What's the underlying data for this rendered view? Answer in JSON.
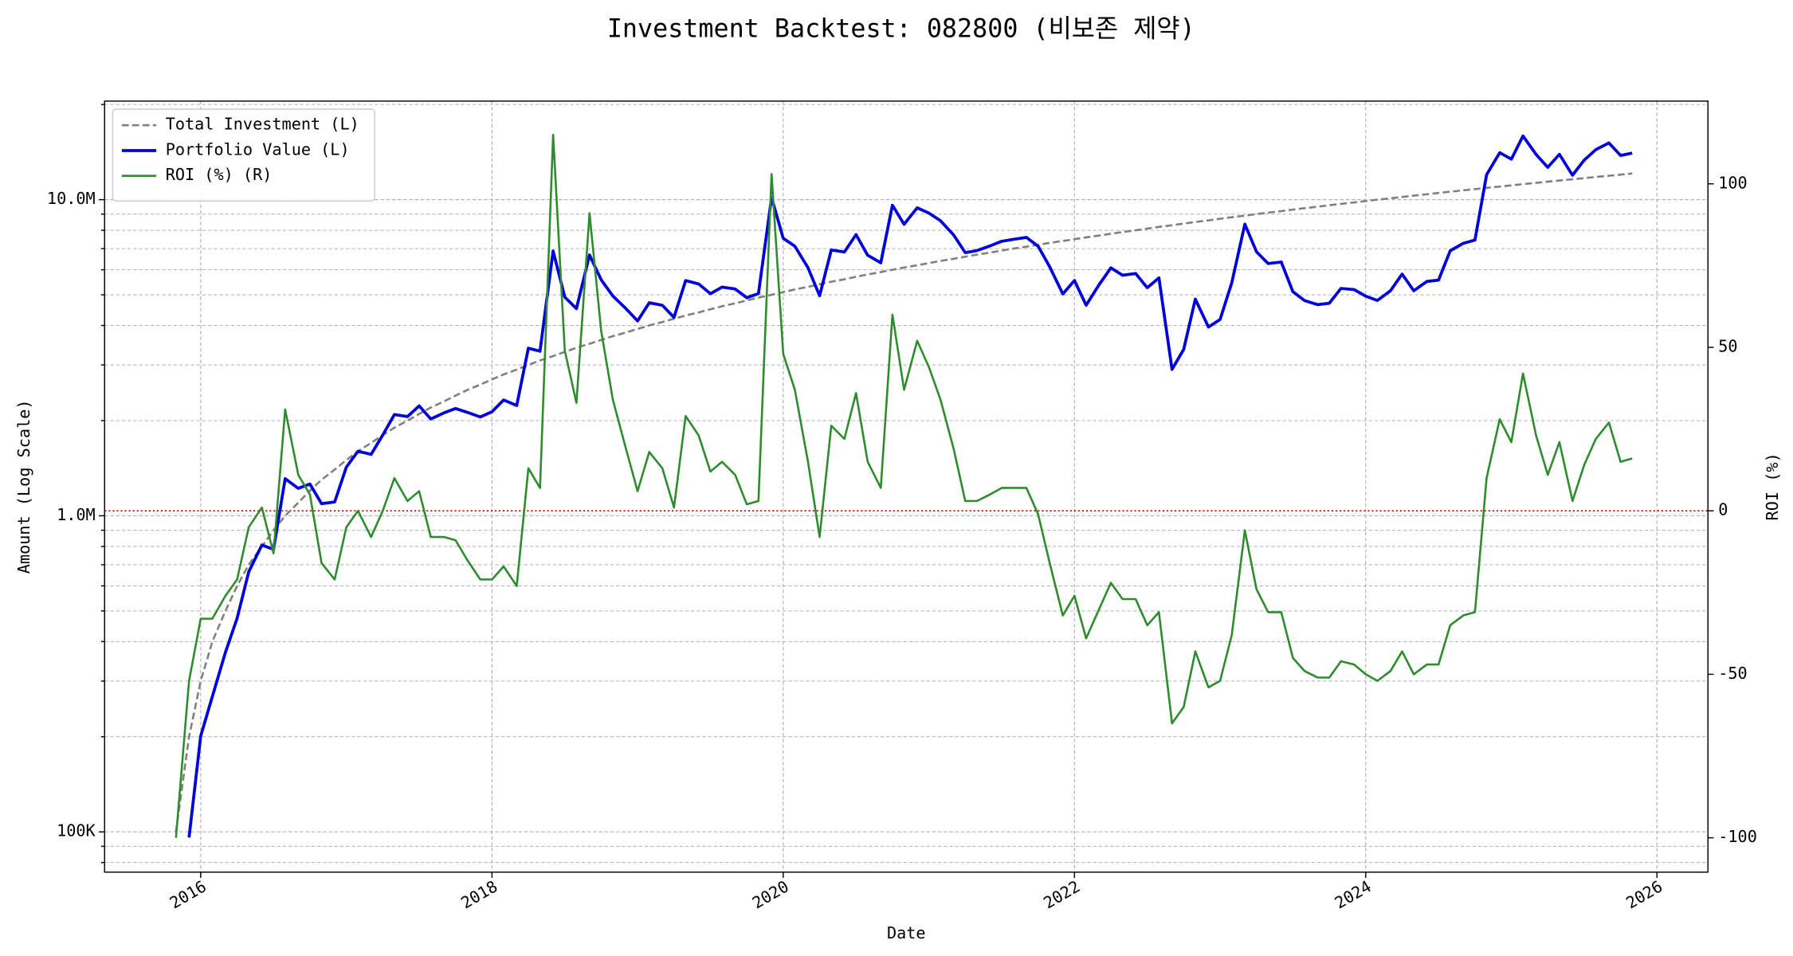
{
  "chart_data": {
    "type": "line",
    "title": "Investment Backtest: 082800 (비보존 제약)",
    "xlabel": "Date",
    "ylabel": "Amount (Log Scale)",
    "y2label": "ROI (%)",
    "ylabel_color": "#0000cc",
    "y2label_color": "#228b22",
    "yscale": "log",
    "grid": true,
    "legend": "upper left",
    "x": [
      2015.83,
      2015.92,
      2016.0,
      2016.08,
      2016.17,
      2016.25,
      2016.33,
      2016.42,
      2016.5,
      2016.58,
      2016.67,
      2016.75,
      2016.83,
      2016.92,
      2017.0,
      2017.08,
      2017.17,
      2017.25,
      2017.33,
      2017.42,
      2017.5,
      2017.58,
      2017.67,
      2017.75,
      2017.83,
      2017.92,
      2018.0,
      2018.08,
      2018.17,
      2018.25,
      2018.33,
      2018.42,
      2018.5,
      2018.58,
      2018.67,
      2018.75,
      2018.83,
      2018.92,
      2019.0,
      2019.08,
      2019.17,
      2019.25,
      2019.33,
      2019.42,
      2019.5,
      2019.58,
      2019.67,
      2019.75,
      2019.83,
      2019.92,
      2020.0,
      2020.08,
      2020.17,
      2020.25,
      2020.33,
      2020.42,
      2020.5,
      2020.58,
      2020.67,
      2020.75,
      2020.83,
      2020.92,
      2021.0,
      2021.08,
      2021.17,
      2021.25,
      2021.33,
      2021.42,
      2021.5,
      2021.58,
      2021.67,
      2021.75,
      2021.83,
      2021.92,
      2022.0,
      2022.08,
      2022.17,
      2022.25,
      2022.33,
      2022.42,
      2022.5,
      2022.58,
      2022.67,
      2022.75,
      2022.83,
      2022.92,
      2023.0,
      2023.08,
      2023.17,
      2023.25,
      2023.33,
      2023.42,
      2023.5,
      2023.58,
      2023.67,
      2023.75,
      2023.83,
      2023.92,
      2024.0,
      2024.08,
      2024.17,
      2024.25,
      2024.33,
      2024.42,
      2024.5,
      2024.58,
      2024.67,
      2024.75,
      2024.83,
      2024.92,
      2025.0,
      2025.08,
      2025.17,
      2025.25,
      2025.33,
      2025.42,
      2025.5,
      2025.58,
      2025.67,
      2025.75,
      2025.83
    ],
    "series": [
      {
        "name": "Total Investment (L)",
        "color": "#808080",
        "style": "dashed",
        "axis": "y",
        "values": [
          100000,
          200000,
          300000,
          400000,
          500000,
          600000,
          700000,
          800000,
          900000,
          1000000,
          1100000,
          1200000,
          1300000,
          1400000,
          1500000,
          1600000,
          1700000,
          1800000,
          1900000,
          2000000,
          2100000,
          2200000,
          2300000,
          2400000,
          2500000,
          2600000,
          2700000,
          2800000,
          2900000,
          3000000,
          3100000,
          3200000,
          3300000,
          3400000,
          3500000,
          3600000,
          3700000,
          3800000,
          3900000,
          4000000,
          4100000,
          4200000,
          4300000,
          4400000,
          4500000,
          4600000,
          4700000,
          4800000,
          4900000,
          5000000,
          5100000,
          5200000,
          5300000,
          5400000,
          5500000,
          5600000,
          5700000,
          5800000,
          5900000,
          6000000,
          6100000,
          6200000,
          6300000,
          6400000,
          6500000,
          6600000,
          6700000,
          6800000,
          6900000,
          7000000,
          7100000,
          7200000,
          7300000,
          7400000,
          7500000,
          7600000,
          7700000,
          7800000,
          7900000,
          8000000,
          8100000,
          8200000,
          8300000,
          8400000,
          8500000,
          8600000,
          8700000,
          8800000,
          8900000,
          9000000,
          9100000,
          9200000,
          9300000,
          9400000,
          9500000,
          9600000,
          9700000,
          9800000,
          9900000,
          10000000,
          10100000,
          10200000,
          10300000,
          10400000,
          10500000,
          10600000,
          10700000,
          10800000,
          10900000,
          11000000,
          11100000,
          11200000,
          11300000,
          11400000,
          11500000,
          11600000,
          11700000,
          11800000,
          11900000,
          12000000,
          12100000
        ]
      },
      {
        "name": "Portfolio Value (L)",
        "color": "#0000dd",
        "style": "solid",
        "width": 2.6,
        "axis": "y",
        "values": [
          null,
          96000,
          201000,
          268000,
          370000,
          474000,
          665000,
          808000,
          783000,
          1310000,
          1221000,
          1260000,
          1092000,
          1106000,
          1425000,
          1600000,
          1564000,
          1800000,
          2090000,
          2060000,
          2226000,
          2024000,
          2116000,
          2184000,
          2125000,
          2054000,
          2133000,
          2324000,
          2233000,
          3390000,
          3317000,
          6880000,
          4917000,
          4522000,
          6685000,
          5580000,
          4958000,
          4522000,
          4134000,
          4720000,
          4633000,
          4242000,
          5547000,
          5412000,
          5040000,
          5290000,
          5217000,
          4896000,
          5047000,
          10150000,
          7548000,
          7124000,
          6095000,
          4968000,
          6930000,
          6832000,
          7752000,
          6670000,
          6313000,
          9600000,
          8357000,
          9424000,
          9072000,
          8576000,
          7735000,
          6798000,
          6901000,
          7140000,
          7383000,
          7490000,
          7597000,
          7128000,
          6132000,
          5032000,
          5550000,
          4636000,
          5390000,
          6084000,
          5767000,
          5840000,
          5265000,
          5658000,
          2905000,
          3360000,
          4845000,
          3956000,
          4176000,
          5456000,
          8366000,
          6840000,
          6279000,
          6348000,
          5115000,
          4794000,
          4655000,
          4704000,
          5238000,
          5194000,
          4950000,
          4800000,
          5151000,
          5814000,
          5150000,
          5512000,
          5565000,
          6890000,
          7276000,
          7452000,
          11990000,
          14080000,
          13431000,
          15904000,
          13899000,
          12654000,
          13915000,
          11948000,
          13338000,
          14396000,
          15113000,
          13800000,
          14036000
        ]
      },
      {
        "name": "ROI (%) (R)",
        "color": "#2e8b2e",
        "style": "solid",
        "width": 1.8,
        "axis": "y2",
        "values": [
          -100,
          -52,
          -33,
          -33,
          -26,
          -21,
          -5,
          1,
          -13,
          31,
          11,
          5,
          -16,
          -21,
          -5,
          0,
          -8,
          0,
          10,
          3,
          6,
          -8,
          -8,
          -9,
          -15,
          -21,
          -21,
          -17,
          -23,
          13,
          7,
          115,
          49,
          33,
          91,
          55,
          34,
          19,
          6,
          18,
          13,
          1,
          29,
          23,
          12,
          15,
          11,
          2,
          3,
          103,
          48,
          37,
          15,
          -8,
          26,
          22,
          36,
          15,
          7,
          60,
          37,
          52,
          44,
          34,
          19,
          3,
          3,
          5,
          7,
          7,
          7,
          -1,
          -16,
          -32,
          -26,
          -39,
          -30,
          -22,
          -27,
          -27,
          -35,
          -31,
          -65,
          -60,
          -43,
          -54,
          -52,
          -38,
          -6,
          -24,
          -31,
          -31,
          -45,
          -49,
          -51,
          -51,
          -46,
          -47,
          -50,
          -52,
          -49,
          -43,
          -50,
          -47,
          -47,
          -35,
          -32,
          -31,
          10,
          28,
          21,
          42,
          23,
          11,
          21,
          3,
          14,
          22,
          27,
          15,
          16
        ]
      }
    ],
    "hline": {
      "value": 0,
      "axis": "y2",
      "color": "#cc0000"
    },
    "xlim": [
      2015.34,
      2026.35
    ],
    "xticks": [
      2016,
      2018,
      2020,
      2022,
      2024,
      2026
    ],
    "ylim": [
      74600,
      20500000
    ],
    "yticks": [
      {
        "value": 100000,
        "label": "100K"
      },
      {
        "value": 1000000,
        "label": "1.0M"
      },
      {
        "value": 10000000,
        "label": "10.0M"
      }
    ],
    "yminorticks": [
      80000,
      90000,
      200000,
      300000,
      400000,
      500000,
      600000,
      700000,
      800000,
      900000,
      2000000,
      3000000,
      4000000,
      5000000,
      6000000,
      7000000,
      8000000,
      9000000,
      20000000
    ],
    "y2lim": [
      -110.5,
      125.3
    ],
    "y2ticks": [
      -100,
      -50,
      0,
      50,
      100
    ]
  }
}
